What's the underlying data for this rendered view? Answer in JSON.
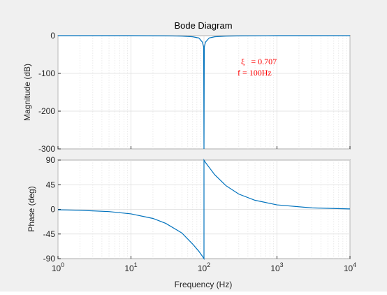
{
  "chart_data": {
    "type": "line",
    "title": "Bode Diagram",
    "xlabel": "Frequency  (Hz)",
    "x_scale": "log",
    "xlim": [
      1,
      10000
    ],
    "x_ticks": [
      {
        "value": 1,
        "base": "10",
        "exp": "0"
      },
      {
        "value": 10,
        "base": "10",
        "exp": "1"
      },
      {
        "value": 100,
        "base": "10",
        "exp": "2"
      },
      {
        "value": 1000,
        "base": "10",
        "exp": "3"
      },
      {
        "value": 10000,
        "base": "10",
        "exp": "4"
      }
    ],
    "grid": true,
    "annotations": [
      "ξ   = 0.707",
      "f = 100Hz"
    ],
    "panels": [
      {
        "name": "magnitude",
        "ylabel": "Magnitude (dB)",
        "ylim": [
          -300,
          0
        ],
        "y_ticks": [
          {
            "value": 0,
            "label": "0"
          },
          {
            "value": -100,
            "label": "-100"
          },
          {
            "value": -200,
            "label": "-200"
          },
          {
            "value": -300,
            "label": "-300"
          }
        ],
        "x": [
          1,
          10,
          30,
          50,
          70,
          85,
          95,
          99,
          100,
          101,
          105,
          118,
          140,
          200,
          333,
          1000,
          10000
        ],
        "y": [
          0,
          0,
          -0.4,
          -1.2,
          -3,
          -6,
          -17,
          -30,
          -300,
          -30,
          -17,
          -6,
          -3,
          -1.2,
          -0.4,
          0,
          0
        ]
      },
      {
        "name": "phase",
        "ylabel": "Phase (deg)",
        "ylim": [
          -90,
          90
        ],
        "y_ticks": [
          {
            "value": 90,
            "label": "90"
          },
          {
            "value": 45,
            "label": "45"
          },
          {
            "value": 0,
            "label": "0"
          },
          {
            "value": -45,
            "label": "-45"
          },
          {
            "value": -90,
            "label": "-90"
          }
        ],
        "x": [
          1,
          2,
          5,
          10,
          20,
          30,
          50,
          70,
          85,
          95,
          100,
          100,
          105,
          118,
          140,
          200,
          300,
          500,
          1000,
          3000,
          10000
        ],
        "y": [
          -0.8,
          -1.6,
          -4.1,
          -8.2,
          -16.6,
          -25.6,
          -43.3,
          -63.4,
          -76.5,
          -85.5,
          -90,
          90,
          85.5,
          76.5,
          63.4,
          43.3,
          27.9,
          16.6,
          8.2,
          2.7,
          0.8
        ]
      }
    ]
  }
}
